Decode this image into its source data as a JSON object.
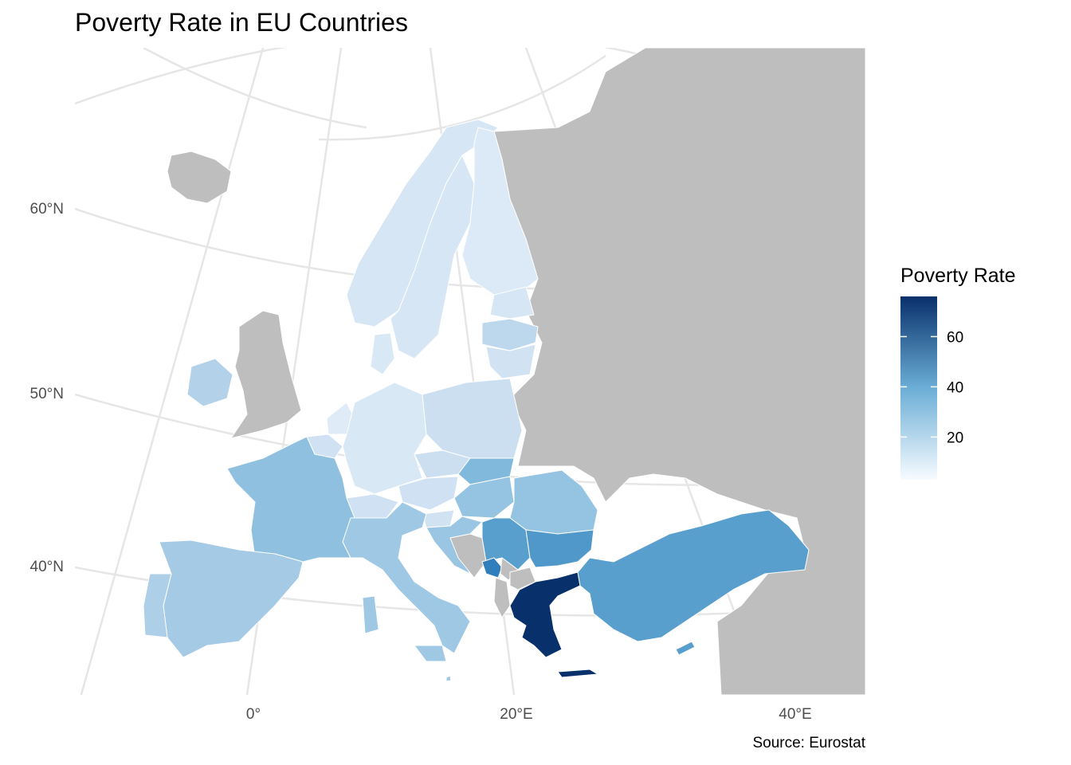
{
  "title": "Poverty Rate in EU Countries",
  "caption": "Source: Eurostat",
  "axes": {
    "x_ticks": [
      "0°",
      "20°E",
      "40°E"
    ],
    "y_ticks": [
      "60°N",
      "50°N",
      "40°N"
    ]
  },
  "legend": {
    "title": "Poverty Rate",
    "ticks": [
      "20",
      "40",
      "60"
    ],
    "tick_values": [
      20,
      40,
      60
    ],
    "range": [
      3,
      76
    ],
    "color_low": "#f7fbff",
    "color_high": "#08306b"
  },
  "colors": {
    "no_data": "#bebebe",
    "graticule": "#e6e6e6",
    "border": "#ffffff"
  },
  "countries": [
    {
      "name": "Iceland",
      "value": null
    },
    {
      "name": "Norway",
      "value": 15
    },
    {
      "name": "Sweden",
      "value": 15
    },
    {
      "name": "Finland",
      "value": 13
    },
    {
      "name": "Estonia",
      "value": 15
    },
    {
      "name": "Latvia",
      "value": 23
    },
    {
      "name": "Lithuania",
      "value": 17
    },
    {
      "name": "Denmark",
      "value": 14
    },
    {
      "name": "Ireland",
      "value": 25
    },
    {
      "name": "United Kingdom",
      "value": null
    },
    {
      "name": "Netherlands",
      "value": 12
    },
    {
      "name": "Belgium",
      "value": 18
    },
    {
      "name": "Luxembourg",
      "value": 18
    },
    {
      "name": "Germany",
      "value": 14
    },
    {
      "name": "Poland",
      "value": 19
    },
    {
      "name": "Czechia",
      "value": 19
    },
    {
      "name": "Slovakia",
      "value": 35
    },
    {
      "name": "Austria",
      "value": 18
    },
    {
      "name": "Switzerland",
      "value": 18
    },
    {
      "name": "Hungary",
      "value": 31
    },
    {
      "name": "Slovenia",
      "value": 17
    },
    {
      "name": "Croatia",
      "value": 30
    },
    {
      "name": "Romania",
      "value": 31
    },
    {
      "name": "France",
      "value": 32
    },
    {
      "name": "Spain",
      "value": 28
    },
    {
      "name": "Portugal",
      "value": 26
    },
    {
      "name": "Italy",
      "value": 29
    },
    {
      "name": "Serbia",
      "value": 44
    },
    {
      "name": "Bosnia and Herzegovina",
      "value": null
    },
    {
      "name": "Montenegro",
      "value": 54
    },
    {
      "name": "Kosovo",
      "value": null
    },
    {
      "name": "Albania",
      "value": null
    },
    {
      "name": "North Macedonia",
      "value": null
    },
    {
      "name": "Bulgaria",
      "value": 46
    },
    {
      "name": "Greece",
      "value": 76
    },
    {
      "name": "Turkey",
      "value": 44
    },
    {
      "name": "Cyprus",
      "value": 44
    },
    {
      "name": "Malta",
      "value": 29
    },
    {
      "name": "Russia / Eastern Europe",
      "value": null
    }
  ]
}
